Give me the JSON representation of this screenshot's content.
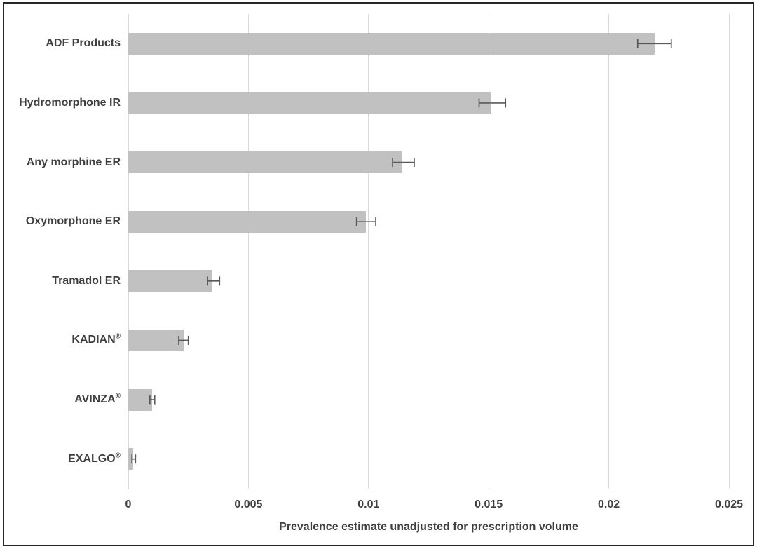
{
  "chart_data": {
    "type": "bar",
    "orientation": "horizontal",
    "title": "",
    "xlabel": "Prevalence estimate unadjusted for prescription volume",
    "ylabel": "",
    "xlim": [
      0,
      0.025
    ],
    "x_ticks": [
      0,
      0.005,
      0.01,
      0.015,
      0.02,
      0.025
    ],
    "x_tick_labels": [
      "0",
      "0.005",
      "0.01",
      "0.015",
      "0.02",
      "0.025"
    ],
    "grid": "vertical-only",
    "legend": "none",
    "categories": [
      "ADF Products",
      "Hydromorphone IR",
      "Any morphine ER",
      "Oxymorphone ER",
      "Tramadol ER",
      "KADIAN®",
      "AVINZA®",
      "EXALGO®"
    ],
    "series": [
      {
        "name": "Prevalence estimate unadjusted for prescription volume",
        "values": [
          0.0219,
          0.0151,
          0.0114,
          0.0099,
          0.0035,
          0.0023,
          0.001,
          0.0002
        ],
        "ci_low": [
          0.0212,
          0.0146,
          0.011,
          0.0095,
          0.0033,
          0.0021,
          0.0009,
          0.00015
        ],
        "ci_high": [
          0.0226,
          0.0157,
          0.0119,
          0.0103,
          0.0038,
          0.0025,
          0.0011,
          0.0003
        ]
      }
    ],
    "colors": {
      "bar_fill": "#C1C1C1",
      "error_bar": "#595959",
      "gridline": "#D9D9D9",
      "axis_line": "#D9D9D9",
      "text": "#3F3F3F",
      "frame_border": "#262626",
      "background": "#FFFFFF"
    }
  }
}
